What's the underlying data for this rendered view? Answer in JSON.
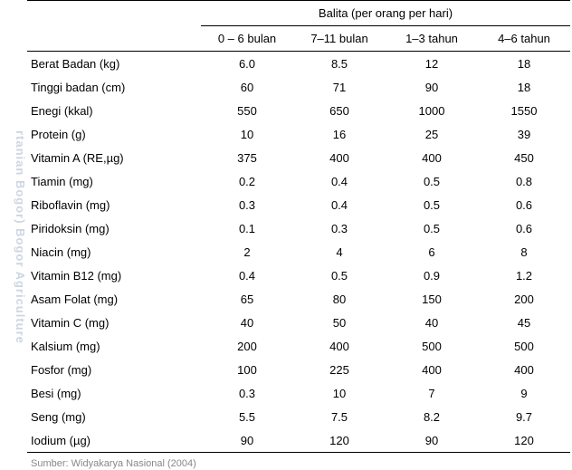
{
  "watermark": "rtanian Bogor)            Bogor Agriculture",
  "table": {
    "header_main": "Balita (per orang per hari)",
    "columns": [
      "0 – 6 bulan",
      "7–11 bulan",
      "1–3 tahun",
      "4–6 tahun"
    ],
    "col_widths": [
      "32%",
      "17%",
      "17%",
      "17%",
      "17%"
    ],
    "rows": [
      {
        "label": "Berat Badan (kg)",
        "v": [
          "6.0",
          "8.5",
          "12",
          "18"
        ]
      },
      {
        "label": "Tinggi badan (cm)",
        "v": [
          "60",
          "71",
          "90",
          "18"
        ]
      },
      {
        "label": "Enegi (kkal)",
        "v": [
          "550",
          "650",
          "1000",
          "1550"
        ]
      },
      {
        "label": "Protein (g)",
        "v": [
          "10",
          "16",
          "25",
          "39"
        ]
      },
      {
        "label": "Vitamin A (RE,µg)",
        "v": [
          "375",
          "400",
          "400",
          "450"
        ]
      },
      {
        "label": "Tiamin (mg)",
        "v": [
          "0.2",
          "0.4",
          "0.5",
          "0.8"
        ]
      },
      {
        "label": "Riboflavin (mg)",
        "v": [
          "0.3",
          "0.4",
          "0.5",
          "0.6"
        ]
      },
      {
        "label": "Piridoksin (mg)",
        "v": [
          "0.1",
          "0.3",
          "0.5",
          "0.6"
        ]
      },
      {
        "label": "Niacin (mg)",
        "v": [
          "2",
          "4",
          "6",
          "8"
        ]
      },
      {
        "label": "Vitamin B12 (mg)",
        "v": [
          "0.4",
          "0.5",
          "0.9",
          "1.2"
        ]
      },
      {
        "label": "Asam Folat (mg)",
        "v": [
          "65",
          "80",
          "150",
          "200"
        ]
      },
      {
        "label": "Vitamin C (mg)",
        "v": [
          "40",
          "50",
          "40",
          "45"
        ]
      },
      {
        "label": "Kalsium (mg)",
        "v": [
          "200",
          "400",
          "500",
          "500"
        ]
      },
      {
        "label": "Fosfor (mg)",
        "v": [
          "100",
          "225",
          "400",
          "400"
        ]
      },
      {
        "label": "Besi (mg)",
        "v": [
          "0.3",
          "10",
          "7",
          "9"
        ]
      },
      {
        "label": "Seng (mg)",
        "v": [
          "5.5",
          "7.5",
          "8.2",
          "9.7"
        ]
      },
      {
        "label": "Iodium (µg)",
        "v": [
          "90",
          "120",
          "90",
          "120"
        ]
      }
    ]
  },
  "source": "Sumber: Widyakarya Nasional (2004)",
  "colors": {
    "text": "#000000",
    "watermark": "#b8c5d6",
    "background": "#ffffff",
    "border": "#000000",
    "source": "#888888"
  },
  "fonts": {
    "body_size": 13,
    "source_size": 11,
    "family": "Arial, sans-serif"
  }
}
